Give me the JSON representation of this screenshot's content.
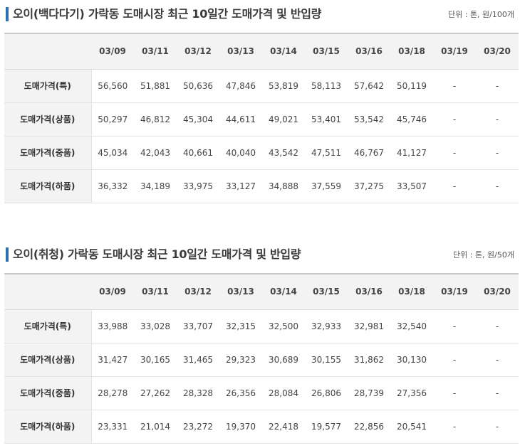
{
  "tables": [
    {
      "title": "오이(백다다기) 가락동 도매시장 최근 10일간 도매가격 및 반입량",
      "unit": "단위 : 톤, 원/100개",
      "dates": [
        "03/09",
        "03/11",
        "03/12",
        "03/13",
        "03/14",
        "03/15",
        "03/16",
        "03/18",
        "03/19",
        "03/20"
      ],
      "rows": [
        {
          "label": "도매가격(특)",
          "values": [
            "56,560",
            "51,881",
            "50,636",
            "47,846",
            "53,819",
            "58,113",
            "57,642",
            "50,119",
            "-",
            "-"
          ]
        },
        {
          "label": "도매가격(상품)",
          "values": [
            "50,297",
            "46,812",
            "45,304",
            "44,611",
            "49,021",
            "53,401",
            "53,542",
            "45,746",
            "-",
            "-"
          ]
        },
        {
          "label": "도매가격(중품)",
          "values": [
            "45,034",
            "42,043",
            "40,661",
            "40,040",
            "43,542",
            "47,511",
            "46,767",
            "41,127",
            "-",
            "-"
          ]
        },
        {
          "label": "도매가격(하품)",
          "values": [
            "36,332",
            "34,189",
            "33,975",
            "33,127",
            "34,888",
            "37,559",
            "37,275",
            "33,507",
            "-",
            "-"
          ]
        }
      ]
    },
    {
      "title": "오이(취청) 가락동 도매시장 최근 10일간 도매가격 및 반입량",
      "unit": "단위 : 톤, 원/50개",
      "dates": [
        "03/09",
        "03/11",
        "03/12",
        "03/13",
        "03/14",
        "03/15",
        "03/16",
        "03/18",
        "03/19",
        "03/20"
      ],
      "rows": [
        {
          "label": "도매가격(특)",
          "values": [
            "33,988",
            "33,028",
            "33,707",
            "32,315",
            "32,500",
            "32,933",
            "32,981",
            "32,540",
            "-",
            "-"
          ]
        },
        {
          "label": "도매가격(상품)",
          "values": [
            "31,427",
            "30,165",
            "31,465",
            "29,323",
            "30,689",
            "30,155",
            "31,862",
            "30,130",
            "-",
            "-"
          ]
        },
        {
          "label": "도매가격(중품)",
          "values": [
            "28,278",
            "27,262",
            "28,328",
            "26,356",
            "28,084",
            "26,806",
            "28,739",
            "27,356",
            "-",
            "-"
          ]
        },
        {
          "label": "도매가격(하품)",
          "values": [
            "23,331",
            "21,014",
            "23,272",
            "19,370",
            "22,418",
            "19,577",
            "22,856",
            "20,541",
            "-",
            "-"
          ]
        }
      ]
    }
  ]
}
